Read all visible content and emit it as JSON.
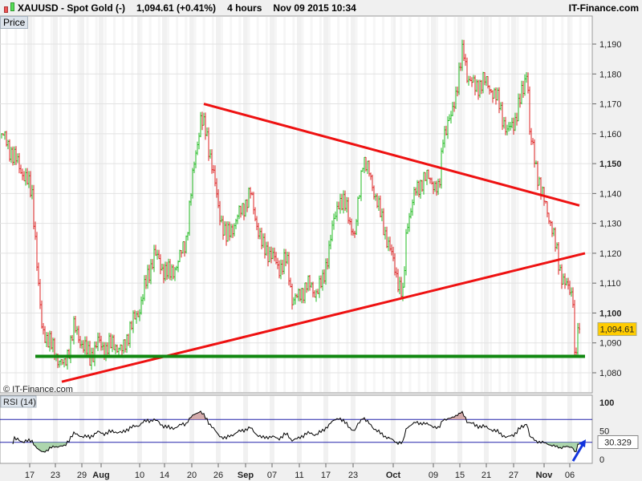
{
  "header": {
    "symbol": "XAUUSD - Spot Gold (-)",
    "price": "1,094.61 (+0.41%)",
    "interval": "4 hours",
    "datetime": "Nov 09 2015 10:34",
    "brand": "IT-Finance.com"
  },
  "panel_label": "Price",
  "watermark": "© IT-Finance.com",
  "rsi_label": "RSI (14)",
  "last_price": "1,094.61",
  "last_rsi": "30.329",
  "colors": {
    "up": "#22bb22",
    "down": "#dd2222",
    "trend_red": "#ee1111",
    "support_green": "#118811",
    "rsi_line": "#000000",
    "rsi_band": "#2222aa",
    "arrow": "#1133dd",
    "tag": "#ffcc00"
  },
  "chart_data": {
    "type": "candlestick",
    "title": "XAUUSD - Spot Gold (-)",
    "ylim": [
      1075,
      1195
    ],
    "y_ticks": [
      {
        "v": 1080,
        "l": "1,080"
      },
      {
        "v": 1090,
        "l": "1,090"
      },
      {
        "v": 1100,
        "l": "1,100",
        "b": true
      },
      {
        "v": 1110,
        "l": "1,110"
      },
      {
        "v": 1120,
        "l": "1,120"
      },
      {
        "v": 1130,
        "l": "1,130"
      },
      {
        "v": 1140,
        "l": "1,140"
      },
      {
        "v": 1150,
        "l": "1,150",
        "b": true
      },
      {
        "v": 1160,
        "l": "1,160"
      },
      {
        "v": 1170,
        "l": "1,170"
      },
      {
        "v": 1180,
        "l": "1,180"
      },
      {
        "v": 1190,
        "l": "1,190"
      }
    ],
    "x_ticks": [
      {
        "t": 35,
        "l": "17"
      },
      {
        "t": 67,
        "l": "23"
      },
      {
        "t": 100,
        "l": "29"
      },
      {
        "t": 124,
        "l": "Aug",
        "b": true
      },
      {
        "t": 172,
        "l": "10"
      },
      {
        "t": 203,
        "l": "14"
      },
      {
        "t": 237,
        "l": "20"
      },
      {
        "t": 270,
        "l": "26"
      },
      {
        "t": 304,
        "l": "Sep",
        "b": true
      },
      {
        "t": 337,
        "l": "07"
      },
      {
        "t": 371,
        "l": "11"
      },
      {
        "t": 404,
        "l": "17"
      },
      {
        "t": 438,
        "l": "23"
      },
      {
        "t": 488,
        "l": "Oct",
        "b": true
      },
      {
        "t": 538,
        "l": "09"
      },
      {
        "t": 571,
        "l": "15"
      },
      {
        "t": 604,
        "l": "21"
      },
      {
        "t": 638,
        "l": "27"
      },
      {
        "t": 676,
        "l": "Nov",
        "b": true
      },
      {
        "t": 708,
        "l": "06"
      }
    ],
    "price_path": [
      [
        0,
        1160
      ],
      [
        10,
        1155
      ],
      [
        20,
        1150
      ],
      [
        30,
        1145
      ],
      [
        38,
        1140
      ],
      [
        42,
        1125
      ],
      [
        46,
        1108
      ],
      [
        50,
        1095
      ],
      [
        60,
        1090
      ],
      [
        70,
        1085
      ],
      [
        78,
        1082
      ],
      [
        90,
        1095
      ],
      [
        100,
        1090
      ],
      [
        110,
        1085
      ],
      [
        120,
        1090
      ],
      [
        130,
        1088
      ],
      [
        140,
        1090
      ],
      [
        150,
        1087
      ],
      [
        160,
        1095
      ],
      [
        170,
        1100
      ],
      [
        180,
        1110
      ],
      [
        190,
        1120
      ],
      [
        200,
        1115
      ],
      [
        210,
        1113
      ],
      [
        220,
        1117
      ],
      [
        230,
        1125
      ],
      [
        240,
        1150
      ],
      [
        248,
        1165
      ],
      [
        255,
        1160
      ],
      [
        262,
        1150
      ],
      [
        270,
        1135
      ],
      [
        280,
        1125
      ],
      [
        290,
        1130
      ],
      [
        300,
        1135
      ],
      [
        310,
        1140
      ],
      [
        318,
        1130
      ],
      [
        325,
        1122
      ],
      [
        335,
        1120
      ],
      [
        345,
        1115
      ],
      [
        355,
        1118
      ],
      [
        362,
        1105
      ],
      [
        370,
        1105
      ],
      [
        380,
        1110
      ],
      [
        390,
        1107
      ],
      [
        400,
        1110
      ],
      [
        410,
        1125
      ],
      [
        420,
        1138
      ],
      [
        430,
        1135
      ],
      [
        440,
        1125
      ],
      [
        450,
        1152
      ],
      [
        460,
        1145
      ],
      [
        470,
        1135
      ],
      [
        480,
        1125
      ],
      [
        490,
        1115
      ],
      [
        500,
        1105
      ],
      [
        505,
        1130
      ],
      [
        515,
        1140
      ],
      [
        525,
        1145
      ],
      [
        535,
        1145
      ],
      [
        545,
        1140
      ],
      [
        550,
        1160
      ],
      [
        560,
        1165
      ],
      [
        570,
        1180
      ],
      [
        575,
        1188
      ],
      [
        580,
        1180
      ],
      [
        590,
        1175
      ],
      [
        600,
        1178
      ],
      [
        610,
        1175
      ],
      [
        620,
        1170
      ],
      [
        630,
        1160
      ],
      [
        640,
        1165
      ],
      [
        650,
        1175
      ],
      [
        655,
        1183
      ],
      [
        658,
        1160
      ],
      [
        665,
        1150
      ],
      [
        675,
        1138
      ],
      [
        685,
        1130
      ],
      [
        695,
        1115
      ],
      [
        705,
        1108
      ],
      [
        712,
        1106
      ],
      [
        714,
        1086
      ],
      [
        720,
        1094.61
      ]
    ],
    "trendlines": [
      {
        "name": "upper-resistance",
        "color": "red",
        "from": [
          252,
          1170
        ],
        "to": [
          720,
          1136
        ]
      },
      {
        "name": "rising-support",
        "color": "red",
        "from": [
          75,
          1077
        ],
        "to": [
          727,
          1120
        ]
      },
      {
        "name": "horizontal-support",
        "color": "green",
        "from": [
          42,
          1085.5
        ],
        "to": [
          727,
          1085.5
        ]
      }
    ],
    "rsi": {
      "period": 14,
      "ylim": [
        0,
        100
      ],
      "levels": [
        30,
        70
      ],
      "ticks": [
        {
          "v": 0,
          "l": "0"
        },
        {
          "v": 50,
          "l": "50"
        },
        {
          "v": 100,
          "l": "100",
          "b": true
        }
      ],
      "arrow": {
        "from": [
          712,
          -3
        ],
        "to": [
          728,
          35
        ]
      }
    }
  }
}
